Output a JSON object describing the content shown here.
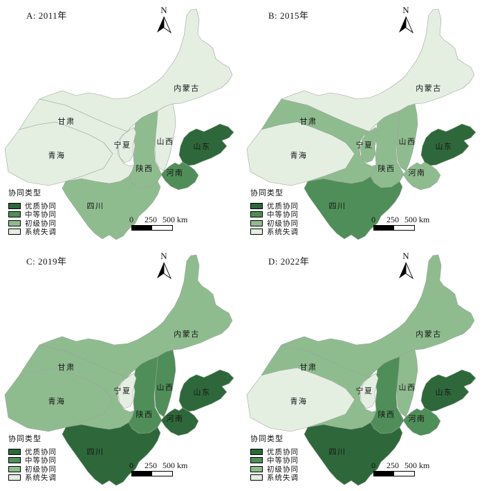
{
  "figure": {
    "description": "协同类型四期分布图",
    "background": "#ffffff"
  },
  "colors": {
    "excellent": "#2E683A",
    "medium": "#4F8E58",
    "primary": "#8FBC8F",
    "disorder": "#E4EFE2",
    "border": "#9AA39B",
    "label_text": "#141414"
  },
  "legend": {
    "title": "协同类型",
    "items": [
      {
        "label": "优质协同",
        "color_key": "excellent"
      },
      {
        "label": "中等协同",
        "color_key": "medium"
      },
      {
        "label": "初级协同",
        "color_key": "primary"
      },
      {
        "label": "系统失调",
        "color_key": "disorder"
      }
    ]
  },
  "north_arrow": {
    "label": "N"
  },
  "scale_bar": {
    "labels": [
      "0",
      "250",
      "500 km"
    ]
  },
  "provinces": [
    {
      "id": "neimenggu",
      "label": "内蒙古"
    },
    {
      "id": "gansu",
      "label": "甘肃"
    },
    {
      "id": "qinghai",
      "label": "青海"
    },
    {
      "id": "ningxia",
      "label": "宁夏"
    },
    {
      "id": "shanxi",
      "label": "山西"
    },
    {
      "id": "shaanxi",
      "label": "陕西"
    },
    {
      "id": "henan",
      "label": "河南"
    },
    {
      "id": "shandong",
      "label": "山东"
    },
    {
      "id": "sichuan",
      "label": "四川"
    }
  ],
  "panels": [
    {
      "title": "A: 2011年",
      "classification": {
        "qinghai": "disorder",
        "gansu": "disorder",
        "ningxia": "disorder",
        "neimenggu": "disorder",
        "shanxi": "disorder",
        "shaanxi": "primary",
        "sichuan": "primary",
        "henan": "medium",
        "shandong": "excellent"
      }
    },
    {
      "title": "B: 2015年",
      "classification": {
        "qinghai": "disorder",
        "neimenggu": "disorder",
        "gansu": "primary",
        "ningxia": "primary",
        "shaanxi": "primary",
        "shanxi": "primary",
        "henan": "primary",
        "sichuan": "medium",
        "shandong": "excellent"
      }
    },
    {
      "title": "C: 2019年",
      "classification": {
        "ningxia": "disorder",
        "qinghai": "primary",
        "gansu": "primary",
        "neimenggu": "primary",
        "shaanxi": "medium",
        "shanxi": "medium",
        "sichuan": "excellent",
        "henan": "excellent",
        "shandong": "excellent"
      }
    },
    {
      "title": "D: 2022年",
      "classification": {
        "qinghai": "disorder",
        "ningxia": "disorder",
        "gansu": "primary",
        "neimenggu": "primary",
        "shanxi": "primary",
        "shaanxi": "medium",
        "henan": "medium",
        "sichuan": "excellent",
        "shandong": "excellent"
      }
    }
  ]
}
